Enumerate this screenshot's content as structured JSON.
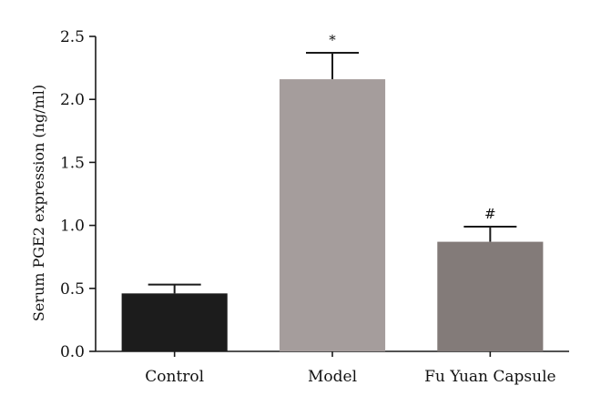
{
  "chart_data": {
    "type": "bar",
    "title": "",
    "xlabel": "",
    "ylabel": "Serum PGE2 expression (ng/ml)",
    "ylim": [
      0,
      2.5
    ],
    "yticks": [
      "0.0",
      "0.5",
      "1.0",
      "1.5",
      "2.0",
      "2.5"
    ],
    "categories": [
      "Control",
      "Model",
      "Fu Yuan Capsule"
    ],
    "values": [
      0.46,
      2.16,
      0.87
    ],
    "errors": [
      0.07,
      0.21,
      0.12
    ],
    "colors": [
      "#1c1c1c",
      "#a59d9c",
      "#837b79"
    ],
    "annotations": [
      "",
      "*",
      "#"
    ],
    "grid": false,
    "legend": "none"
  }
}
